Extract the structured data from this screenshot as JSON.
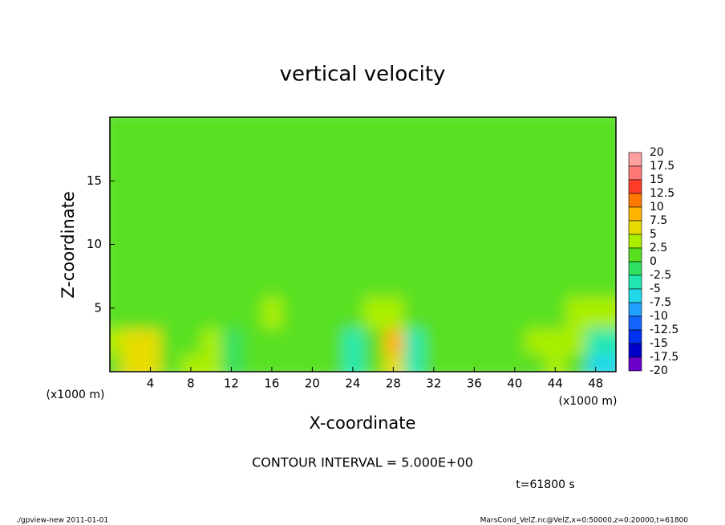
{
  "chart_data": {
    "type": "heatmap",
    "title": "vertical velocity",
    "x_label": "X-coordinate",
    "y_label": "Z-coordinate",
    "x_unit_labels": [
      "(x1000 m)",
      "(x1000 m)"
    ],
    "contour_note": "CONTOUR INTERVAL = 5.000E+00",
    "time_label": "t=61800 s",
    "footer_left": "./gpview-new  2011-01-01",
    "footer_right": "MarsCond_VelZ.nc@VelZ,x=0:50000,z=0:20000,t=61800",
    "xlim": [
      0,
      50
    ],
    "ylim": [
      0,
      20
    ],
    "xticks": [
      4,
      8,
      12,
      16,
      20,
      24,
      28,
      32,
      36,
      40,
      44,
      48
    ],
    "yticks": [
      5,
      10,
      15
    ],
    "x": [
      1,
      3,
      5,
      7,
      9,
      11,
      13,
      15,
      17,
      19,
      21,
      23,
      25,
      27,
      29,
      31,
      33,
      35,
      37,
      39,
      41,
      43,
      45,
      47,
      49
    ],
    "z": [
      1,
      3,
      5,
      8,
      13,
      18
    ],
    "values": [
      [
        2,
        6,
        5,
        1,
        3,
        4,
        -2,
        1,
        2,
        1,
        1,
        2,
        -4,
        1,
        6,
        -3,
        1,
        1,
        0,
        1,
        1,
        2,
        3,
        1,
        -6
      ],
      [
        3,
        6,
        5,
        1,
        2,
        3,
        -1,
        2,
        2,
        1,
        2,
        1,
        -4,
        2,
        8,
        -4,
        1,
        1,
        0,
        1,
        2,
        3,
        3,
        3,
        -3
      ],
      [
        2,
        2,
        2,
        1,
        2,
        2,
        1,
        2,
        3,
        1,
        1,
        1,
        0,
        3,
        4,
        2,
        1,
        1,
        1,
        1,
        1,
        2,
        2,
        3,
        3
      ],
      [
        1,
        2,
        1,
        1,
        1,
        1,
        1,
        1,
        1,
        1,
        1,
        1,
        1,
        1,
        2,
        2,
        1,
        1,
        1,
        1,
        1,
        1,
        1,
        1,
        1
      ],
      [
        1,
        1,
        1,
        0,
        1,
        1,
        1,
        1,
        1,
        1,
        1,
        1,
        1,
        1,
        1,
        1,
        1,
        1,
        1,
        1,
        1,
        1,
        1,
        1,
        1
      ],
      [
        1,
        1,
        1,
        1,
        1,
        1,
        1,
        1,
        1,
        1,
        1,
        1,
        1,
        1,
        1,
        1,
        1,
        1,
        1,
        1,
        1,
        1,
        1,
        1,
        1
      ]
    ],
    "levels": [
      20,
      17.5,
      15,
      12.5,
      10,
      7.5,
      5,
      2.5,
      0,
      -2.5,
      -5,
      -7.5,
      -10,
      -12.5,
      -15,
      -17.5,
      -20
    ],
    "colors": [
      "#ffa0a0",
      "#ff7878",
      "#ff3c28",
      "#ff7800",
      "#ffb400",
      "#e6dc00",
      "#aaee00",
      "#58e020",
      "#30e060",
      "#20e8b0",
      "#20d8e8",
      "#20a0ff",
      "#1464ff",
      "#0030f0",
      "#0000c8",
      "#6a00c8"
    ]
  }
}
